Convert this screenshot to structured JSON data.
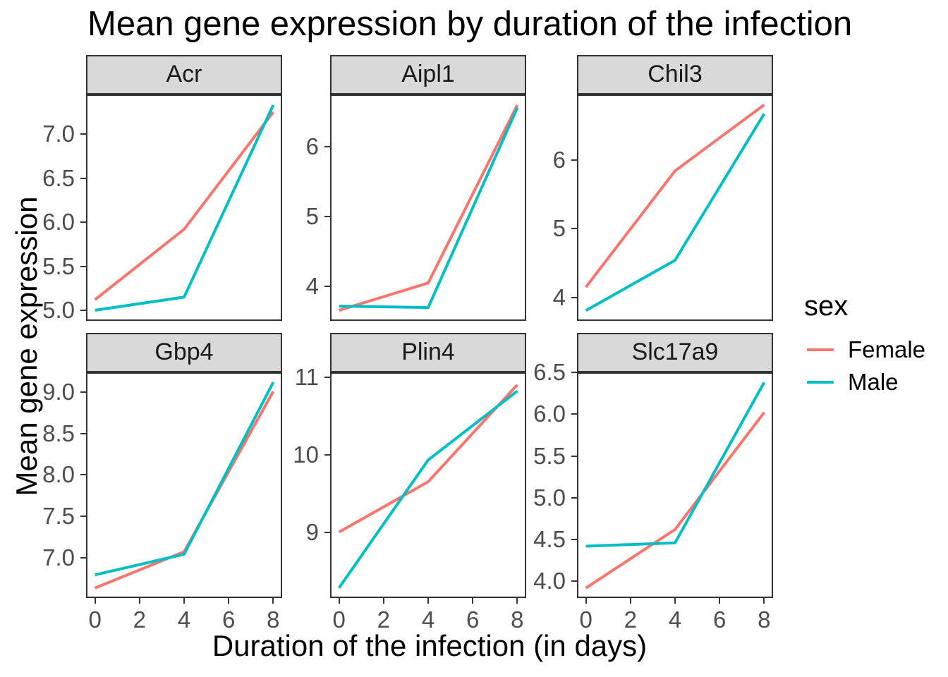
{
  "title": "Mean gene expression by duration of the infection",
  "x_axis_title": "Duration of the infection (in days)",
  "y_axis_title": "Mean gene expression",
  "legend": {
    "title": "sex",
    "entries": [
      {
        "label": "Female",
        "color": "#F8766D"
      },
      {
        "label": "Male",
        "color": "#00BFC4"
      }
    ]
  },
  "colors": {
    "female_line": "#F8766D",
    "male_line": "#00BFC4",
    "strip_fill": "#D9D9D9",
    "panel_border": "#333333",
    "tick_label": "#4D4D4D"
  },
  "chart_data": {
    "type": "line",
    "x": [
      0,
      4,
      8
    ],
    "x_ticks": [
      "0",
      "2",
      "4",
      "6",
      "8"
    ],
    "xlim": [
      -0.4,
      8.4
    ],
    "grid": false,
    "legend_position": "right",
    "facets": [
      {
        "name": "Acr",
        "ylim": [
          4.88,
          7.45
        ],
        "yticks": [
          "5.0",
          "5.5",
          "6.0",
          "6.5",
          "7.0"
        ],
        "series": [
          {
            "name": "Female",
            "values": [
              5.12,
              5.92,
              7.25
            ]
          },
          {
            "name": "Male",
            "values": [
              5.0,
              5.15,
              7.33
            ]
          }
        ]
      },
      {
        "name": "Aipl1",
        "ylim": [
          3.51,
          6.74
        ],
        "yticks": [
          "4",
          "5",
          "6"
        ],
        "series": [
          {
            "name": "Female",
            "values": [
              3.66,
              4.05,
              6.59
            ]
          },
          {
            "name": "Male",
            "values": [
              3.72,
              3.7,
              6.55
            ]
          }
        ]
      },
      {
        "name": "Chil3",
        "ylim": [
          3.66,
          6.95
        ],
        "yticks": [
          "4",
          "5",
          "6"
        ],
        "series": [
          {
            "name": "Female",
            "values": [
              4.15,
              5.84,
              6.8
            ]
          },
          {
            "name": "Male",
            "values": [
              3.81,
              4.54,
              6.67
            ]
          }
        ]
      },
      {
        "name": "Gbp4",
        "ylim": [
          6.51,
          9.24
        ],
        "yticks": [
          "7.0",
          "7.5",
          "8.0",
          "8.5",
          "9.0"
        ],
        "series": [
          {
            "name": "Female",
            "values": [
              6.63,
              7.07,
              9.01
            ]
          },
          {
            "name": "Male",
            "values": [
              6.79,
              7.04,
              9.12
            ]
          }
        ]
      },
      {
        "name": "Plin4",
        "ylim": [
          8.15,
          11.06
        ],
        "yticks": [
          "9",
          "10",
          "11"
        ],
        "series": [
          {
            "name": "Female",
            "values": [
              9.0,
              9.65,
              10.9
            ]
          },
          {
            "name": "Male",
            "values": [
              8.28,
              9.93,
              10.82
            ]
          }
        ]
      },
      {
        "name": "Slc17a9",
        "ylim": [
          3.8,
          6.5
        ],
        "yticks": [
          "4.0",
          "4.5",
          "5.0",
          "5.5",
          "6.0",
          "6.5"
        ],
        "series": [
          {
            "name": "Female",
            "values": [
              3.92,
              4.62,
              6.02
            ]
          },
          {
            "name": "Male",
            "values": [
              4.42,
              4.46,
              6.38
            ]
          }
        ]
      }
    ]
  }
}
